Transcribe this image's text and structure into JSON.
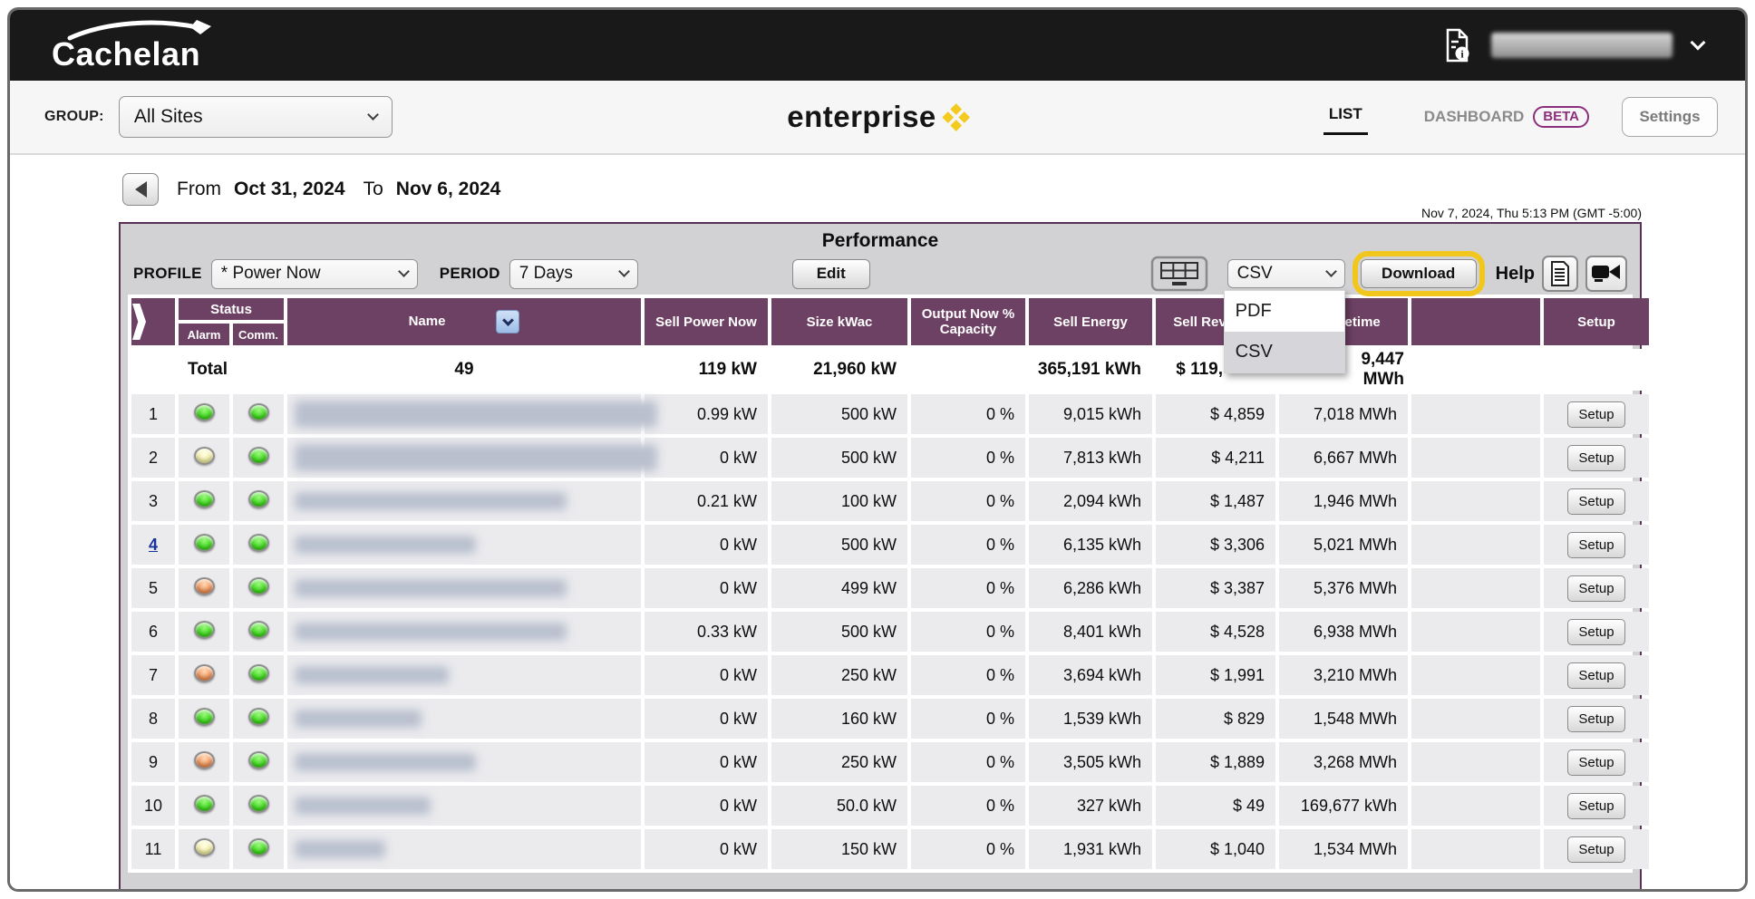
{
  "colors": {
    "accent_yellow": "#f2c71d",
    "header_purple": "#6d4163",
    "panel_border_purple": "#5a3156",
    "beta_purple": "#8b2e7c",
    "link_blue": "#16339c",
    "led_green": "#42dd1f",
    "led_yellow": "#f3efa8",
    "led_orange": "#ef9055",
    "brand_gold": "#f3ca1e"
  },
  "topbar": {
    "logo_text": "Cachelan"
  },
  "groupbar": {
    "group_label": "GROUP:",
    "group_value": "All Sites",
    "brand_text": "enterprise",
    "list_tab": "LIST",
    "dashboard_tab": "DASHBOARD",
    "beta_badge": "BETA",
    "settings_button": "Settings"
  },
  "datenav": {
    "from_label": "From",
    "from_date": "Oct 31, 2024",
    "to_label": "To",
    "to_date": "Nov 6, 2024"
  },
  "timestamp": "Nov 7, 2024, Thu 5:13 PM (GMT -5:00)",
  "panel": {
    "title": "Performance",
    "profile_label": "PROFILE",
    "profile_value": "* Power Now",
    "period_label": "PERIOD",
    "period_value": "7 Days",
    "edit_button": "Edit",
    "format_select_value": "CSV",
    "format_menu": [
      "PDF",
      "CSV"
    ],
    "format_menu_selected": "CSV",
    "download_button": "Download",
    "help_label": "Help"
  },
  "table": {
    "headers": {
      "status": "Status",
      "alarm": "Alarm",
      "comm": "Comm.",
      "name": "Name",
      "sell_power": "Sell Power Now",
      "size": "Size kWac",
      "output": "Output Now % Capacity",
      "sell_energy": "Sell Energy",
      "sell_revenue": "Sell Revenue",
      "lifetime": "Lifetime",
      "setup": "Setup"
    },
    "total": {
      "label": "Total",
      "count": "49",
      "sell_power": "119 kW",
      "size": "21,960 kW",
      "output": "",
      "sell_energy": "365,191 kWh",
      "sell_revenue_visible": "$ 119,",
      "lifetime_visible": "9,447 MWh"
    },
    "setup_label": "Setup",
    "rows": [
      {
        "num": "1",
        "num_link": false,
        "alarm": "green",
        "comm": "green",
        "nb_w": 400,
        "nb_h": 30,
        "sell_power": "0.99 kW",
        "size": "500 kW",
        "output": "0 %",
        "sell_energy": "9,015 kWh",
        "sell_revenue": "$ 4,859",
        "lifetime": "7,018 MWh"
      },
      {
        "num": "2",
        "num_link": false,
        "alarm": "yellow",
        "comm": "green",
        "nb_w": 400,
        "nb_h": 30,
        "sell_power": "0 kW",
        "size": "500 kW",
        "output": "0 %",
        "sell_energy": "7,813 kWh",
        "sell_revenue": "$ 4,211",
        "lifetime": "6,667 MWh"
      },
      {
        "num": "3",
        "num_link": false,
        "alarm": "green",
        "comm": "green",
        "nb_w": 300,
        "nb_h": 20,
        "sell_power": "0.21 kW",
        "size": "100 kW",
        "output": "0 %",
        "sell_energy": "2,094 kWh",
        "sell_revenue": "$ 1,487",
        "lifetime": "1,946 MWh"
      },
      {
        "num": "4",
        "num_link": true,
        "alarm": "green",
        "comm": "green",
        "nb_w": 200,
        "nb_h": 20,
        "sell_power": "0 kW",
        "size": "500 kW",
        "output": "0 %",
        "sell_energy": "6,135 kWh",
        "sell_revenue": "$ 3,306",
        "lifetime": "5,021 MWh"
      },
      {
        "num": "5",
        "num_link": false,
        "alarm": "orange",
        "comm": "green",
        "nb_w": 300,
        "nb_h": 20,
        "sell_power": "0 kW",
        "size": "499 kW",
        "output": "0 %",
        "sell_energy": "6,286 kWh",
        "sell_revenue": "$ 3,387",
        "lifetime": "5,376 MWh"
      },
      {
        "num": "6",
        "num_link": false,
        "alarm": "green",
        "comm": "green",
        "nb_w": 300,
        "nb_h": 20,
        "sell_power": "0.33 kW",
        "size": "500 kW",
        "output": "0 %",
        "sell_energy": "8,401 kWh",
        "sell_revenue": "$ 4,528",
        "lifetime": "6,938 MWh"
      },
      {
        "num": "7",
        "num_link": false,
        "alarm": "orange",
        "comm": "green",
        "nb_w": 170,
        "nb_h": 20,
        "sell_power": "0 kW",
        "size": "250 kW",
        "output": "0 %",
        "sell_energy": "3,694 kWh",
        "sell_revenue": "$ 1,991",
        "lifetime": "3,210 MWh"
      },
      {
        "num": "8",
        "num_link": false,
        "alarm": "green",
        "comm": "green",
        "nb_w": 140,
        "nb_h": 20,
        "sell_power": "0 kW",
        "size": "160 kW",
        "output": "0 %",
        "sell_energy": "1,539 kWh",
        "sell_revenue": "$ 829",
        "lifetime": "1,548 MWh"
      },
      {
        "num": "9",
        "num_link": false,
        "alarm": "orange",
        "comm": "green",
        "nb_w": 200,
        "nb_h": 20,
        "sell_power": "0 kW",
        "size": "250 kW",
        "output": "0 %",
        "sell_energy": "3,505 kWh",
        "sell_revenue": "$ 1,889",
        "lifetime": "3,268 MWh"
      },
      {
        "num": "10",
        "num_link": false,
        "alarm": "green",
        "comm": "green",
        "nb_w": 150,
        "nb_h": 20,
        "sell_power": "0 kW",
        "size": "50.0 kW",
        "output": "0 %",
        "sell_energy": "327 kWh",
        "sell_revenue": "$ 49",
        "lifetime": "169,677 kWh"
      },
      {
        "num": "11",
        "num_link": false,
        "alarm": "yellow",
        "comm": "green",
        "nb_w": 100,
        "nb_h": 20,
        "sell_power": "0 kW",
        "size": "150 kW",
        "output": "0 %",
        "sell_energy": "1,931 kWh",
        "sell_revenue": "$ 1,040",
        "lifetime": "1,534 MWh"
      }
    ]
  }
}
